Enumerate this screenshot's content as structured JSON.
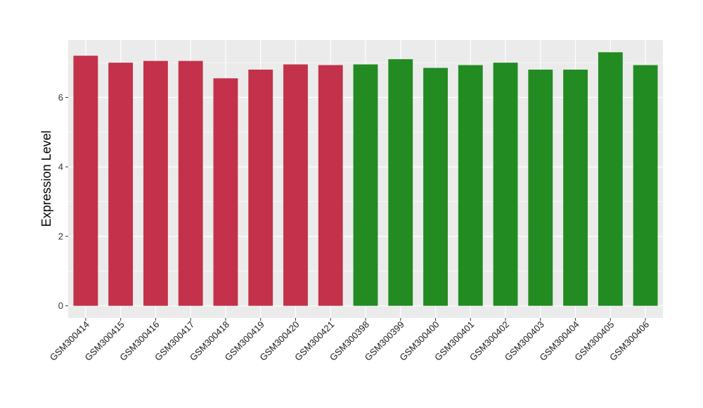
{
  "chart_data": {
    "type": "bar",
    "title": "",
    "xlabel": "",
    "ylabel": "Expression Level",
    "ylim": [
      -0.35,
      7.65
    ],
    "yticks": [
      0,
      2,
      4,
      6
    ],
    "grid": true,
    "legend": "none",
    "panel_background": "#ebebeb",
    "grid_color": "#ffffff",
    "categories": [
      "GSM300414",
      "GSM300415",
      "GSM300416",
      "GSM300417",
      "GSM300418",
      "GSM300419",
      "GSM300420",
      "GSM300421",
      "GSM300398",
      "GSM300399",
      "GSM300400",
      "GSM300401",
      "GSM300402",
      "GSM300403",
      "GSM300404",
      "GSM300405",
      "GSM300406"
    ],
    "values": [
      7.2,
      7.0,
      7.05,
      7.05,
      6.55,
      6.8,
      6.95,
      6.93,
      6.95,
      7.1,
      6.85,
      6.93,
      7.0,
      6.8,
      6.8,
      7.3,
      6.93
    ],
    "bar_colors": [
      "#c3314a",
      "#c3314a",
      "#c3314a",
      "#c3314a",
      "#c3314a",
      "#c3314a",
      "#c3314a",
      "#c3314a",
      "#228b22",
      "#228b22",
      "#228b22",
      "#228b22",
      "#228b22",
      "#228b22",
      "#228b22",
      "#228b22",
      "#228b22"
    ]
  }
}
